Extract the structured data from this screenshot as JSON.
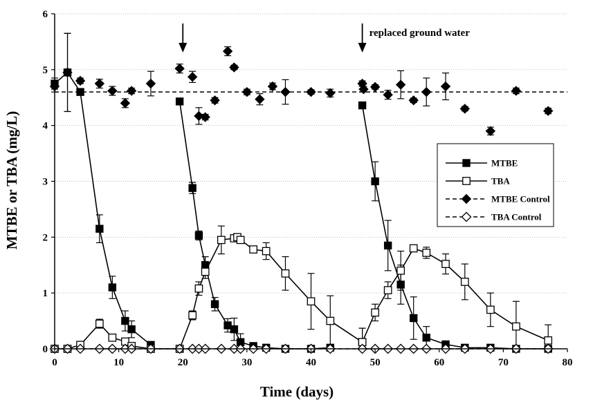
{
  "chart_data": {
    "type": "line",
    "xlabel": "Time (days)",
    "ylabel": "MTBE or TBA (mg/L)",
    "xlim": [
      0,
      80
    ],
    "ylim": [
      0,
      6
    ],
    "xticks": [
      0,
      10,
      20,
      30,
      40,
      50,
      60,
      70,
      80
    ],
    "yticks": [
      0,
      1,
      2,
      3,
      4,
      5,
      6
    ],
    "grid": "horizontal",
    "legend_position": "right-middle",
    "reference_line": {
      "y": 4.6,
      "style": "dashed"
    },
    "annotations": [
      {
        "text": "replaced ground water",
        "x": 48
      },
      {
        "text": "",
        "x": 20
      }
    ],
    "series": [
      {
        "name": "MTBE",
        "marker": "filled-square",
        "line": "solid",
        "segments": [
          [
            [
              0,
              4.75,
              0.1
            ],
            [
              2,
              4.95,
              0.7
            ],
            [
              4,
              4.6,
              0.05
            ],
            [
              7,
              2.15,
              0.25
            ],
            [
              9,
              1.1,
              0.2
            ],
            [
              11,
              0.5,
              0.18
            ],
            [
              12,
              0.35,
              0.15
            ],
            [
              15,
              0.07,
              0.05
            ]
          ],
          [
            [
              19.5,
              4.43,
              0.06
            ],
            [
              21.5,
              2.88,
              0.1
            ],
            [
              22.5,
              2.03,
              0.08
            ],
            [
              23.5,
              1.5,
              0.15
            ],
            [
              25,
              0.8,
              0.12
            ],
            [
              27,
              0.42,
              0.12
            ],
            [
              28,
              0.35,
              0.2
            ],
            [
              29,
              0.12,
              0.15
            ],
            [
              31,
              0.05,
              0.05
            ],
            [
              33,
              0.02,
              0.02
            ],
            [
              36,
              0.0,
              0.02
            ],
            [
              40,
              0.0,
              0.02
            ],
            [
              43,
              0.02,
              0.02
            ]
          ],
          [
            [
              48,
              4.36,
              0.06
            ],
            [
              50,
              3.0,
              0.35
            ],
            [
              52,
              1.85,
              0.45
            ],
            [
              54,
              1.15,
              0.35
            ],
            [
              56,
              0.55,
              0.38
            ],
            [
              58,
              0.2,
              0.2
            ],
            [
              61,
              0.08,
              0.05
            ],
            [
              64,
              0.02,
              0.02
            ],
            [
              68,
              0.02,
              0.03
            ],
            [
              72,
              0.0,
              0.02
            ],
            [
              77,
              0.0,
              0.02
            ]
          ]
        ]
      },
      {
        "name": "TBA",
        "marker": "open-square",
        "line": "solid",
        "segments": [
          [
            [
              0,
              0.0,
              0.02
            ],
            [
              2,
              0.0,
              0.02
            ],
            [
              4,
              0.07,
              0.05
            ],
            [
              7,
              0.45,
              0.08
            ],
            [
              9,
              0.2,
              0.05
            ],
            [
              11,
              0.13,
              0.06
            ],
            [
              12,
              0.05,
              0.05
            ],
            [
              15,
              0.0,
              0.02
            ],
            [
              19.5,
              0.0,
              0.02
            ],
            [
              21.5,
              0.6,
              0.08
            ],
            [
              22.5,
              1.08,
              0.12
            ],
            [
              23.5,
              1.38,
              0.12
            ],
            [
              26,
              1.95,
              0.25
            ],
            [
              28,
              1.98,
              0.06
            ],
            [
              28.5,
              2.0,
              0.06
            ],
            [
              29,
              1.95,
              0.05
            ],
            [
              31,
              1.78,
              0.05
            ],
            [
              33,
              1.75,
              0.15
            ],
            [
              36,
              1.35,
              0.3
            ],
            [
              40,
              0.85,
              0.5
            ],
            [
              43,
              0.5,
              0.45
            ],
            [
              48,
              0.12,
              0.25
            ]
          ],
          [
            [
              48,
              0.12,
              0.25
            ],
            [
              50,
              0.65,
              0.15
            ],
            [
              52,
              1.05,
              0.15
            ],
            [
              54,
              1.4,
              0.35
            ],
            [
              56,
              1.8,
              0.05
            ],
            [
              58,
              1.72,
              0.1
            ],
            [
              61,
              1.52,
              0.18
            ],
            [
              64,
              1.2,
              0.32
            ],
            [
              68,
              0.7,
              0.3
            ],
            [
              72,
              0.4,
              0.45
            ],
            [
              77,
              0.15,
              0.28
            ]
          ]
        ]
      },
      {
        "name": "MTBE Control",
        "marker": "filled-diamond",
        "line": "none",
        "points": [
          [
            0,
            4.7,
            0.1
          ],
          [
            2,
            4.95,
            0.7
          ],
          [
            4,
            4.8,
            0.05
          ],
          [
            7,
            4.75,
            0.08
          ],
          [
            9,
            4.62,
            0.08
          ],
          [
            11,
            4.4,
            0.08
          ],
          [
            12,
            4.62,
            0.05
          ],
          [
            15,
            4.75,
            0.22
          ],
          [
            19.5,
            5.02,
            0.08
          ],
          [
            21.5,
            4.87,
            0.1
          ],
          [
            22.5,
            4.17,
            0.15
          ],
          [
            23.5,
            4.15,
            0.05
          ],
          [
            25,
            4.45,
            0.05
          ],
          [
            27,
            5.33,
            0.08
          ],
          [
            28,
            5.04,
            0.04
          ],
          [
            30,
            4.6,
            0.05
          ],
          [
            32,
            4.47,
            0.1
          ],
          [
            34,
            4.7,
            0.06
          ],
          [
            36,
            4.6,
            0.22
          ],
          [
            40,
            4.6,
            0.04
          ],
          [
            43,
            4.58,
            0.07
          ],
          [
            48,
            4.75,
            0.05
          ],
          [
            48.2,
            4.65,
            0.05
          ],
          [
            50,
            4.69,
            0.04
          ],
          [
            52,
            4.55,
            0.08
          ],
          [
            54,
            4.73,
            0.25
          ],
          [
            56,
            4.45,
            0.04
          ],
          [
            58,
            4.6,
            0.25
          ],
          [
            61,
            4.7,
            0.24
          ],
          [
            64,
            4.3,
            0.04
          ],
          [
            68,
            3.9,
            0.07
          ],
          [
            72,
            4.62,
            0.05
          ],
          [
            77,
            4.26,
            0.05
          ]
        ]
      },
      {
        "name": "TBA Control",
        "marker": "open-diamond",
        "line": "dashed",
        "points": [
          [
            0,
            0,
            0
          ],
          [
            2,
            0,
            0
          ],
          [
            4,
            0,
            0
          ],
          [
            7,
            0,
            0
          ],
          [
            9,
            0,
            0
          ],
          [
            11,
            0,
            0
          ],
          [
            12,
            0,
            0
          ],
          [
            15,
            0,
            0
          ],
          [
            19.5,
            0,
            0
          ],
          [
            21.5,
            0,
            0
          ],
          [
            22.5,
            0,
            0
          ],
          [
            23.5,
            0,
            0
          ],
          [
            26,
            0,
            0
          ],
          [
            28,
            0,
            0
          ],
          [
            29,
            0,
            0
          ],
          [
            31,
            0,
            0
          ],
          [
            33,
            0,
            0
          ],
          [
            36,
            0,
            0
          ],
          [
            40,
            0,
            0
          ],
          [
            43,
            0,
            0
          ],
          [
            48,
            0,
            0
          ],
          [
            50,
            0,
            0
          ],
          [
            52,
            0,
            0
          ],
          [
            54,
            0,
            0
          ],
          [
            56,
            0,
            0
          ],
          [
            58,
            0,
            0
          ],
          [
            61,
            0,
            0
          ],
          [
            64,
            0,
            0
          ],
          [
            68,
            0,
            0
          ],
          [
            72,
            0,
            0
          ],
          [
            77,
            0,
            0
          ]
        ]
      }
    ]
  }
}
